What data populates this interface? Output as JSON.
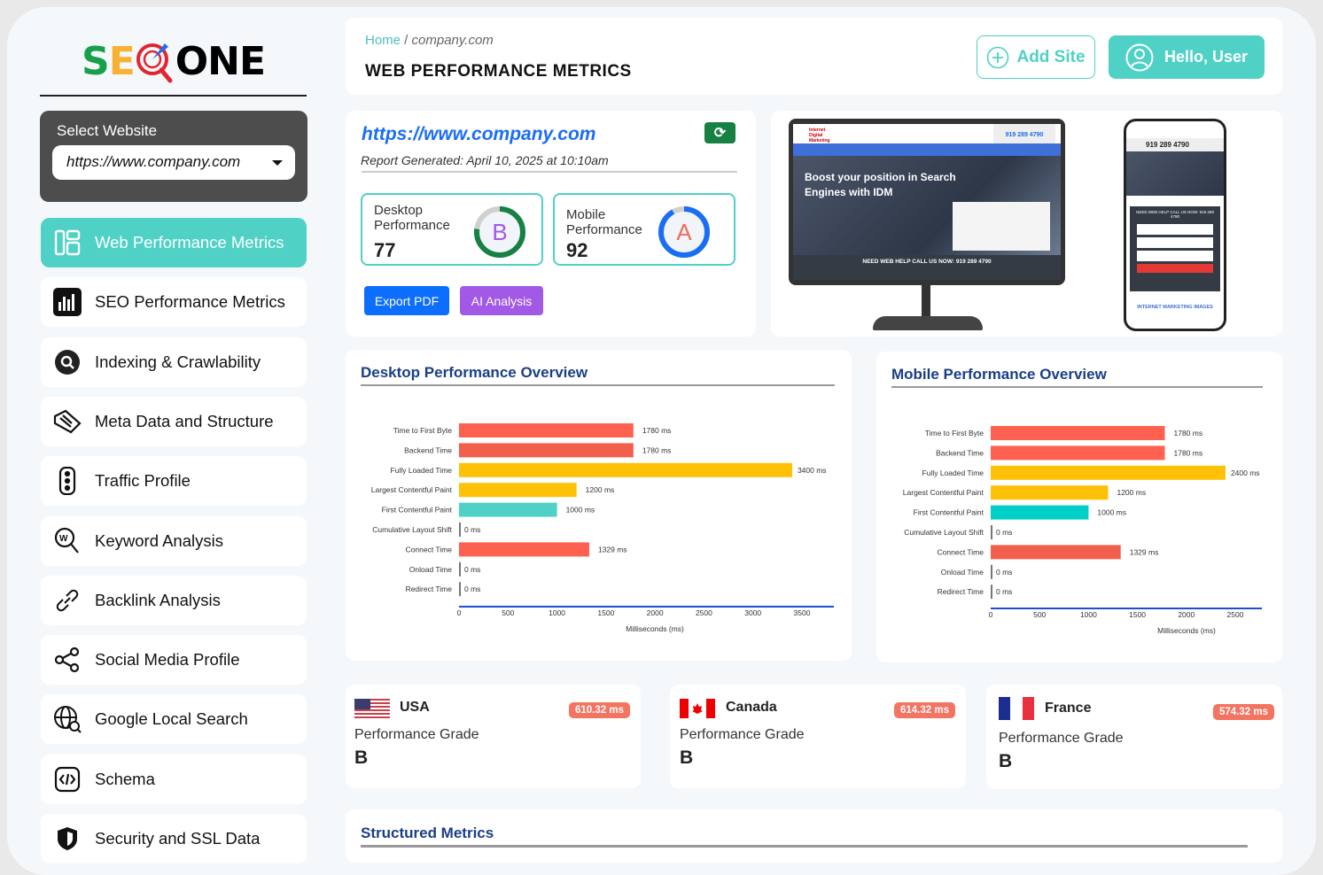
{
  "logo": {
    "text_parts": [
      "SE",
      "O",
      "ONE"
    ]
  },
  "sidebar": {
    "select_label": "Select Website",
    "select_value": "https://www.company.com",
    "items": [
      {
        "label": "Web Performance Metrics",
        "icon": "dashboard-icon",
        "active": true
      },
      {
        "label": "SEO Performance Metrics",
        "icon": "bar-chart-icon"
      },
      {
        "label": "Indexing & Crawlability",
        "icon": "search-icon"
      },
      {
        "label": "Meta Data and Structure",
        "icon": "tag-icon"
      },
      {
        "label": "Traffic Profile",
        "icon": "traffic-light-icon"
      },
      {
        "label": "Keyword Analysis",
        "icon": "keyword-search-icon"
      },
      {
        "label": "Backlink Analysis",
        "icon": "link-icon"
      },
      {
        "label": "Social Media Profile",
        "icon": "share-icon"
      },
      {
        "label": "Google Local Search",
        "icon": "globe-search-icon"
      },
      {
        "label": "Schema",
        "icon": "code-icon"
      },
      {
        "label": "Security and SSL Data",
        "icon": "shield-icon"
      }
    ]
  },
  "header": {
    "breadcrumb_home": "Home",
    "breadcrumb_sep": " / ",
    "breadcrumb_current": "company.com",
    "title": "WEB PERFORMANCE METRICS",
    "add_site": "Add Site",
    "user": "Hello, User"
  },
  "report": {
    "url": "https://www.company.com",
    "generated": "Report Generated: April 10, 2025 at 10:10am",
    "desktop": {
      "label1": "Desktop",
      "label2": "Performance",
      "score": "77",
      "grade": "B",
      "color": "#178043",
      "fraction": 0.77
    },
    "mobile": {
      "label1": "Mobile",
      "label2": "Performance",
      "score": "92",
      "grade": "A",
      "color": "#1a6df5",
      "fraction": 0.92
    },
    "export": "Export PDF",
    "ai": "AI Analysis"
  },
  "preview": {
    "hero": "Boost your position in Search Engines with IDM",
    "phone": "919 289 4790",
    "cta": "NEED WEB HELP CALL US NOW: 919 289 4790",
    "mobile_cta": "NEED WEB HELP CALL US NOW: 919 289 4790",
    "mobile_footer": "INTERNET MARKETING IMAGES",
    "brand": "Internet Digital Marketing"
  },
  "chart_data": [
    {
      "type": "bar",
      "orientation": "horizontal",
      "title": "Desktop Performance Overview",
      "xlabel": "Milliseconds (ms)",
      "xlim": [
        0,
        3800
      ],
      "xticks": [
        0,
        500,
        1000,
        1500,
        2000,
        2500,
        3000,
        3500
      ],
      "categories": [
        "Time to First Byte",
        "Backend Time",
        "Fully Loaded Time",
        "Largest Contentful Paint",
        "First Contentful Paint",
        "Cumulative Layout Shift",
        "Connect Time",
        "Onload Time",
        "Redirect Time"
      ],
      "values": [
        1780,
        1780,
        3400,
        1200,
        1000,
        0,
        1329,
        0,
        0
      ],
      "colors": [
        "#ff6150",
        "#f25f4c",
        "#ffc107",
        "#ffc107",
        "#4fd1c5",
        "#777",
        "#ff6150",
        "#777",
        "#777"
      ]
    },
    {
      "type": "bar",
      "orientation": "horizontal",
      "title": "Mobile Performance Overview",
      "xlabel": "Milliseconds (ms)",
      "xlim": [
        0,
        2770
      ],
      "xticks": [
        0,
        500,
        1000,
        1500,
        2000,
        2500
      ],
      "categories": [
        "Time to First Byte",
        "Backend Time",
        "Fully Loaded Time",
        "Largest Contentful Paint",
        "First Contentful Paint",
        "Cumulative Layout Shift",
        "Connect Time",
        "Onload Time",
        "Redirect Time"
      ],
      "values": [
        1780,
        1780,
        2400,
        1200,
        1000,
        0,
        1329,
        0,
        0
      ],
      "colors": [
        "#ff6150",
        "#ff6150",
        "#ffc107",
        "#ffc107",
        "#00cec9",
        "#777",
        "#f25f4c",
        "#777",
        "#777"
      ]
    }
  ],
  "regions": [
    {
      "name": "USA",
      "ms": "610.32 ms",
      "label": "Performance Grade",
      "grade": "B"
    },
    {
      "name": "Canada",
      "ms": "614.32 ms",
      "label": "Performance Grade",
      "grade": "B"
    },
    {
      "name": "France",
      "ms": "574.32 ms",
      "label": "Performance Grade",
      "grade": "B"
    }
  ],
  "structured": {
    "title": "Structured Metrics"
  }
}
